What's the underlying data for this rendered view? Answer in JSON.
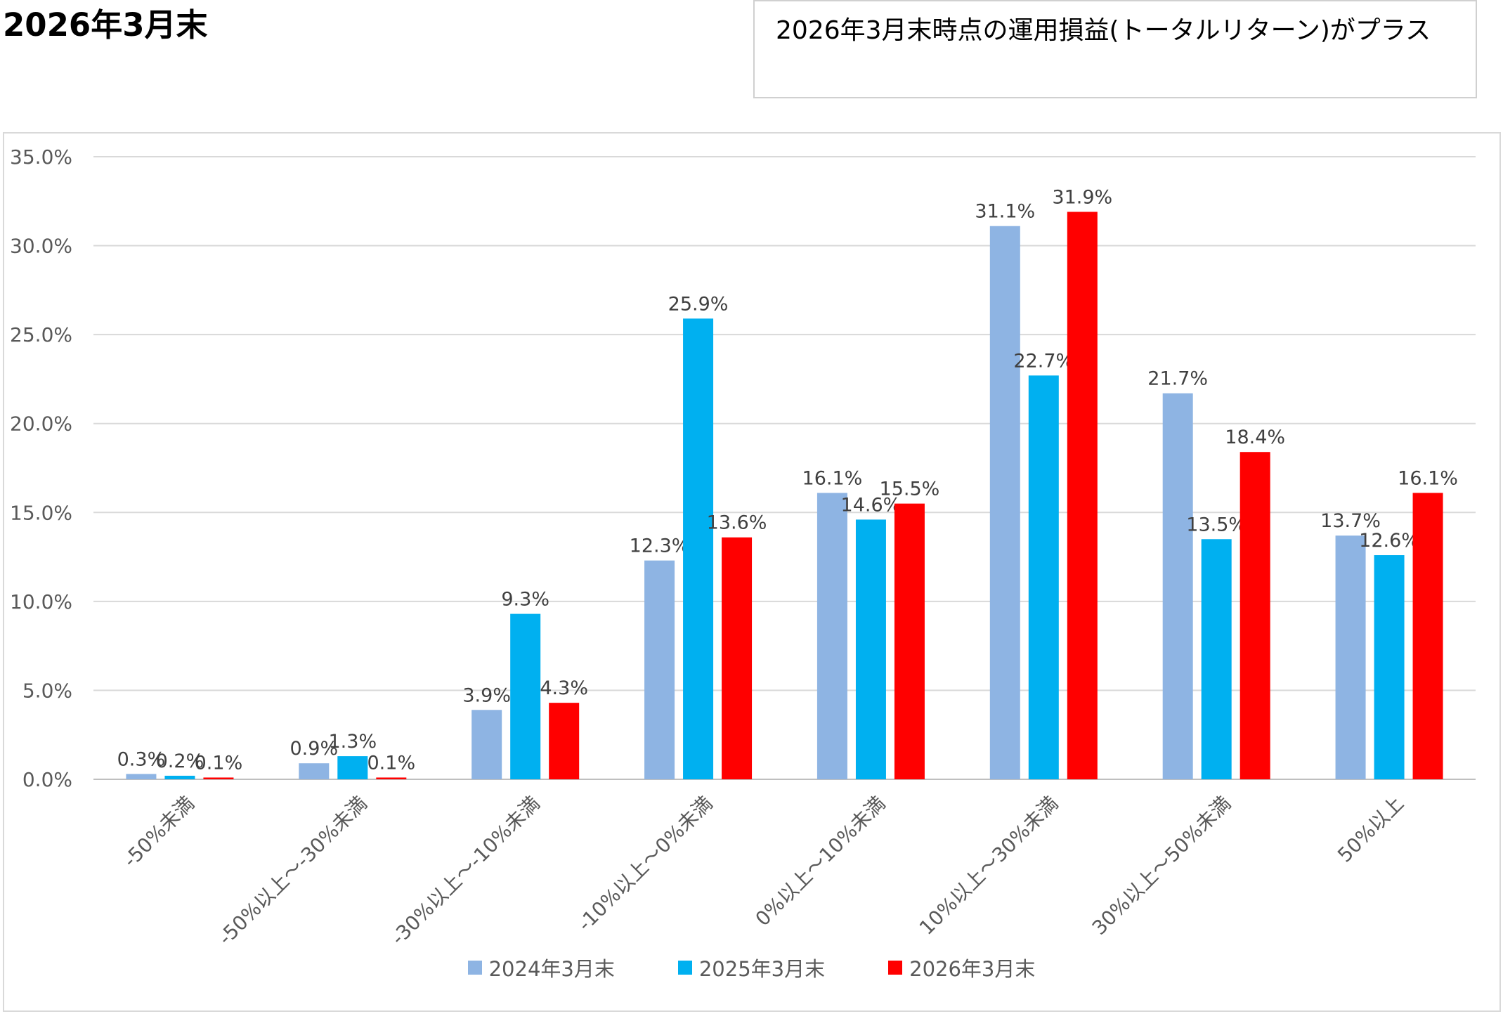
{
  "page_title": "2026年3月末",
  "note": "2026年3月末時点の運用損益(トータルリターン)がプラス",
  "chart_data": {
    "type": "bar",
    "title": "",
    "xlabel": "",
    "ylabel": "",
    "ylim": [
      0,
      35
    ],
    "yticks": [
      "0.0%",
      "5.0%",
      "10.0%",
      "15.0%",
      "20.0%",
      "25.0%",
      "30.0%",
      "35.0%"
    ],
    "grid": true,
    "legend_position": "bottom",
    "categories": [
      "-50%未満",
      "-50%以上～-30%未満",
      "-30%以上～-10%未満",
      "-10%以上～0%未満",
      "0%以上～10%未満",
      "10%以上～30%未満",
      "30%以上～50%未満",
      "50%以上"
    ],
    "series": [
      {
        "name": "2024年3月末",
        "color": "#8eb4e3",
        "values": [
          0.3,
          0.9,
          3.9,
          12.3,
          16.1,
          31.1,
          21.7,
          13.7
        ]
      },
      {
        "name": "2025年3月末",
        "color": "#00b0f0",
        "values": [
          0.2,
          1.3,
          9.3,
          25.9,
          14.6,
          22.7,
          13.5,
          12.6
        ]
      },
      {
        "name": "2026年3月末",
        "color": "#ff0000",
        "values": [
          0.1,
          0.1,
          4.3,
          13.6,
          15.5,
          31.9,
          18.4,
          16.1
        ]
      }
    ]
  }
}
